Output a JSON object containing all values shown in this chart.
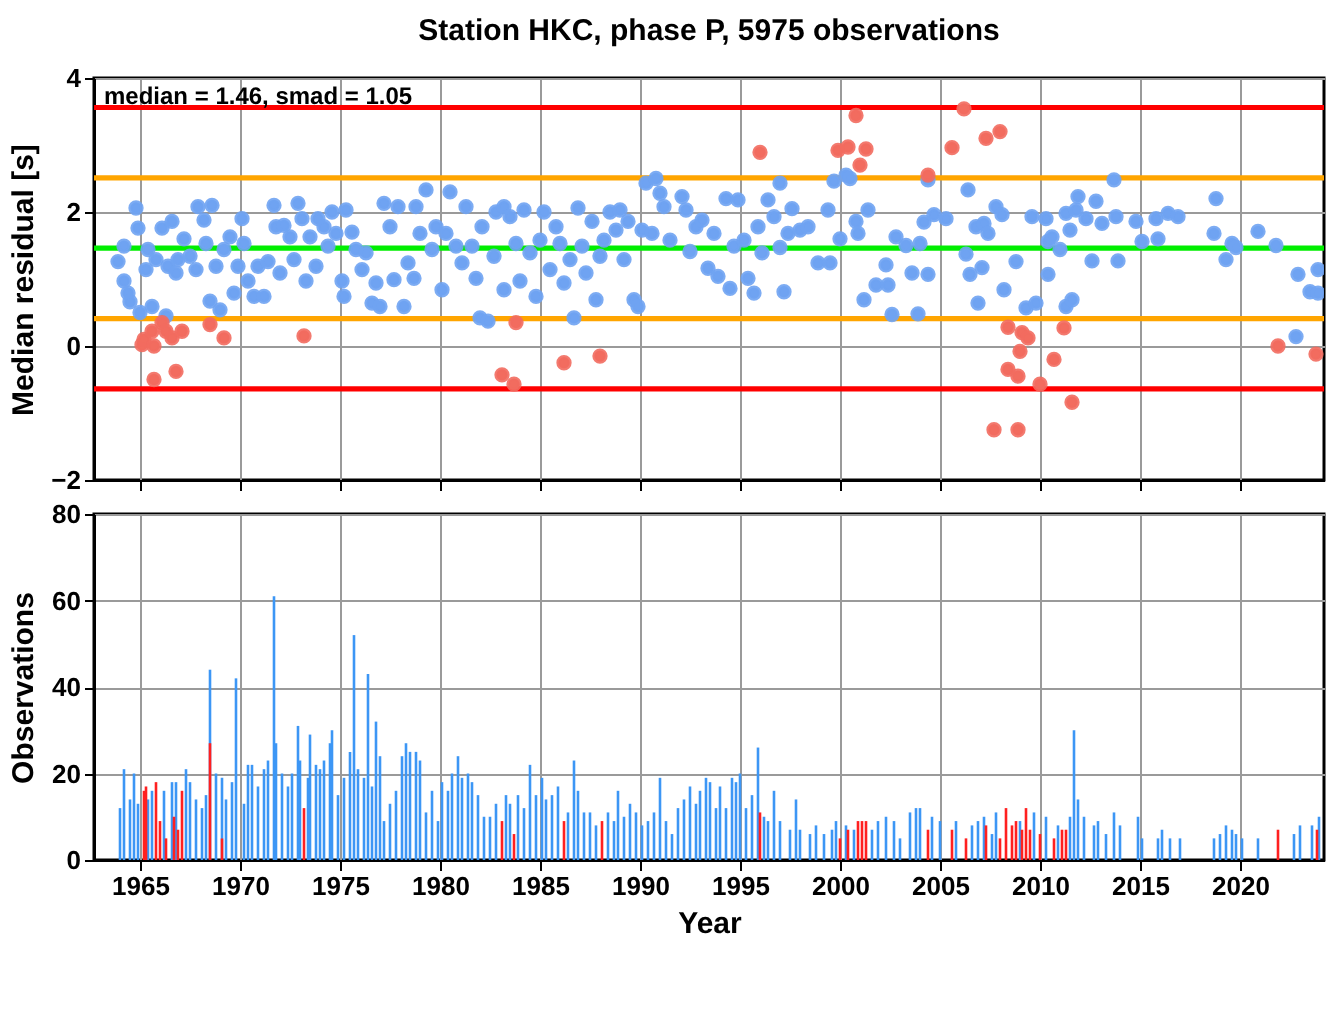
{
  "chart_data": [
    {
      "type": "scatter",
      "title": "Station HKC, phase P, 5975 observations",
      "ylabel": "Median residual [s]",
      "annotations": [
        "median = 1.46, smad = 1.05"
      ],
      "xlim": [
        1962.7,
        2024.2
      ],
      "xticks": [
        1965,
        1970,
        1975,
        1980,
        1985,
        1990,
        1995,
        2000,
        2005,
        2010,
        2015,
        2020
      ],
      "ylim": [
        -2,
        4
      ],
      "yticks": [
        -2,
        0,
        2,
        4
      ],
      "grid": true,
      "tick_labels": "y",
      "marker": "circle",
      "ref_lines": [
        {
          "axis": "y",
          "value": 3.56,
          "color": "#ff0000"
        },
        {
          "axis": "y",
          "value": 2.51,
          "color": "#ffa500"
        },
        {
          "axis": "y",
          "value": 1.46,
          "color": "#00ee00"
        },
        {
          "axis": "y",
          "value": 0.41,
          "color": "#ffa500"
        },
        {
          "axis": "y",
          "value": -0.64,
          "color": "#ff0000"
        }
      ],
      "series": [
        {
          "color": "#6fa3f2",
          "x": [
            1963.9,
            1964.2,
            1964.2,
            1964.4,
            1964.5,
            1964.8,
            1964.9,
            1965.0,
            1965.3,
            1965.4,
            1965.6,
            1965.8,
            1966.1,
            1966.3,
            1966.4,
            1966.6,
            1966.8,
            1966.9,
            1967.2,
            1967.5,
            1967.8,
            1967.9,
            1968.2,
            1968.3,
            1968.5,
            1968.6,
            1968.8,
            1969.0,
            1969.2,
            1969.5,
            1969.7,
            1969.9,
            1970.1,
            1970.2,
            1970.4,
            1970.7,
            1970.9,
            1971.2,
            1971.4,
            1971.7,
            1971.8,
            1972.0,
            1972.2,
            1972.5,
            1972.7,
            1972.9,
            1973.1,
            1973.3,
            1973.5,
            1973.8,
            1973.9,
            1974.2,
            1974.4,
            1974.6,
            1974.8,
            1975.1,
            1975.2,
            1975.3,
            1975.6,
            1975.8,
            1976.1,
            1976.3,
            1976.6,
            1976.8,
            1977.0,
            1977.2,
            1977.5,
            1977.7,
            1977.9,
            1978.2,
            1978.4,
            1978.7,
            1978.8,
            1979.0,
            1979.3,
            1979.6,
            1979.8,
            1980.1,
            1980.3,
            1980.5,
            1980.8,
            1981.1,
            1981.3,
            1981.6,
            1981.8,
            1982.0,
            1982.1,
            1982.4,
            1982.7,
            1982.8,
            1983.2,
            1983.2,
            1983.5,
            1983.8,
            1984.0,
            1984.2,
            1984.5,
            1984.8,
            1985.0,
            1985.2,
            1985.5,
            1985.8,
            1986.0,
            1986.2,
            1986.5,
            1986.7,
            1986.9,
            1987.1,
            1987.3,
            1987.6,
            1987.8,
            1988.0,
            1988.2,
            1988.5,
            1988.8,
            1989.0,
            1989.2,
            1989.4,
            1989.7,
            1989.9,
            1990.1,
            1990.3,
            1990.6,
            1990.8,
            1991.0,
            1991.2,
            1991.5,
            1992.1,
            1992.3,
            1992.5,
            1992.8,
            1993.1,
            1993.4,
            1993.7,
            1993.9,
            1994.3,
            1994.5,
            1994.7,
            1994.9,
            1995.2,
            1995.4,
            1995.7,
            1995.9,
            1996.1,
            1996.4,
            1996.7,
            1997.0,
            1997.0,
            1997.2,
            1997.4,
            1997.6,
            1998.0,
            1998.4,
            1998.9,
            1999.4,
            1999.5,
            1999.7,
            2000.0,
            2000.3,
            2000.5,
            2000.8,
            2000.9,
            2001.2,
            2001.4,
            2001.8,
            2002.3,
            2002.4,
            2002.6,
            2002.8,
            2003.3,
            2003.6,
            2003.9,
            2004.0,
            2004.2,
            2004.4,
            2004.4,
            2004.7,
            2005.3,
            2006.3,
            2006.4,
            2006.5,
            2006.8,
            2006.9,
            2007.1,
            2007.2,
            2007.4,
            2007.8,
            2008.1,
            2008.2,
            2008.8,
            2009.3,
            2009.6,
            2009.8,
            2010.3,
            2010.4,
            2010.4,
            2010.6,
            2011.0,
            2011.3,
            2011.3,
            2011.5,
            2011.6,
            2011.8,
            2011.9,
            2012.3,
            2012.6,
            2012.8,
            2013.1,
            2013.7,
            2013.8,
            2013.9,
            2014.8,
            2015.1,
            2015.8,
            2015.9,
            2016.4,
            2016.9,
            2018.7,
            2018.8,
            2019.3,
            2019.6,
            2019.8,
            2020.9,
            2021.8,
            2022.8,
            2022.9,
            2023.5,
            2023.9,
            2023.9
          ],
          "values": [
            1.26,
            1.49,
            0.97,
            0.79,
            0.66,
            2.06,
            1.76,
            0.5,
            1.14,
            1.44,
            0.59,
            1.29,
            1.76,
            0.45,
            1.19,
            1.86,
            1.09,
            1.29,
            1.6,
            1.34,
            1.14,
            2.08,
            1.88,
            1.53,
            0.67,
            2.1,
            1.19,
            0.54,
            1.44,
            1.63,
            0.79,
            1.19,
            1.9,
            1.53,
            0.97,
            0.74,
            1.19,
            0.74,
            1.26,
            2.1,
            1.78,
            1.09,
            1.8,
            1.63,
            1.29,
            2.13,
            1.9,
            0.97,
            1.63,
            1.19,
            1.9,
            1.78,
            1.49,
            2.0,
            1.68,
            0.97,
            0.74,
            2.03,
            1.7,
            1.44,
            1.14,
            1.39,
            0.64,
            0.94,
            0.59,
            2.13,
            1.78,
            0.99,
            2.08,
            0.59,
            1.24,
            1.01,
            2.08,
            1.68,
            2.33,
            1.44,
            1.78,
            0.84,
            1.68,
            2.3,
            1.49,
            1.24,
            2.08,
            1.49,
            1.01,
            0.42,
            1.78,
            0.37,
            1.34,
            2.0,
            0.84,
            2.08,
            1.93,
            1.53,
            0.97,
            2.03,
            1.39,
            0.74,
            1.58,
            2.0,
            1.14,
            1.78,
            1.53,
            0.94,
            1.29,
            0.42,
            2.06,
            1.49,
            1.09,
            1.86,
            0.69,
            1.34,
            1.58,
            2.0,
            1.73,
            2.03,
            1.29,
            1.86,
            0.69,
            0.59,
            1.73,
            2.43,
            1.68,
            2.5,
            2.28,
            2.08,
            1.58,
            2.23,
            2.03,
            1.41,
            1.78,
            1.88,
            1.16,
            1.68,
            1.04,
            2.2,
            0.86,
            1.49,
            2.18,
            1.58,
            1.01,
            0.79,
            1.78,
            1.39,
            2.18,
            1.93,
            1.47,
            2.43,
            0.81,
            1.68,
            2.05,
            1.73,
            1.78,
            1.24,
            2.03,
            1.24,
            2.46,
            1.6,
            2.55,
            2.5,
            1.86,
            1.68,
            0.69,
            2.03,
            0.91,
            1.21,
            0.91,
            0.47,
            1.63,
            1.5,
            1.09,
            0.48,
            1.53,
            1.85,
            2.48,
            1.07,
            1.96,
            1.9,
            1.37,
            2.33,
            1.07,
            1.78,
            0.64,
            1.17,
            1.83,
            1.68,
            2.08,
            1.96,
            0.84,
            1.26,
            0.57,
            1.93,
            0.64,
            1.9,
            1.56,
            1.07,
            1.63,
            1.44,
            1.98,
            0.59,
            1.73,
            0.69,
            2.03,
            2.23,
            1.9,
            1.27,
            2.16,
            1.83,
            2.48,
            1.93,
            1.27,
            1.86,
            1.56,
            1.9,
            1.6,
            1.98,
            1.93,
            1.68,
            2.2,
            1.29,
            1.53,
            1.47,
            1.71,
            1.5,
            0.14,
            1.07,
            0.81,
            0.79,
            1.14
          ]
        },
        {
          "color": "#f26c5f",
          "x": [
            1965.1,
            1965.2,
            1965.6,
            1965.7,
            1965.7,
            1966.1,
            1966.3,
            1966.6,
            1966.8,
            1967.1,
            1968.5,
            1969.2,
            1973.2,
            1983.1,
            1983.7,
            1983.8,
            1986.2,
            1988.0,
            1996.0,
            1999.9,
            2000.4,
            2000.8,
            2001.0,
            2001.3,
            2004.4,
            2005.6,
            2006.2,
            2007.3,
            2007.7,
            2008.0,
            2008.4,
            2008.4,
            2008.9,
            2008.9,
            2009.0,
            2009.1,
            2009.4,
            2010.0,
            2010.7,
            2011.2,
            2011.6,
            2021.9,
            2023.8
          ],
          "values": [
            0.02,
            0.1,
            0.22,
            0.0,
            -0.5,
            0.35,
            0.22,
            0.12,
            -0.38,
            0.22,
            0.32,
            0.12,
            0.15,
            -0.43,
            -0.57,
            0.35,
            -0.25,
            -0.15,
            2.89,
            2.92,
            2.97,
            3.44,
            2.7,
            2.94,
            2.55,
            2.96,
            3.54,
            3.1,
            -1.25,
            3.2,
            0.28,
            -0.35,
            -0.45,
            -1.25,
            -0.08,
            0.2,
            0.12,
            -0.57,
            -0.2,
            0.27,
            -0.84,
            0.0,
            -0.12
          ]
        }
      ]
    },
    {
      "type": "bar",
      "xlabel": "Year",
      "ylabel": "Observations",
      "xlim": [
        1962.7,
        2024.2
      ],
      "xticks": [
        1965,
        1970,
        1975,
        1980,
        1985,
        1990,
        1995,
        2000,
        2005,
        2010,
        2015,
        2020
      ],
      "ylim": [
        0,
        80
      ],
      "yticks": [
        0,
        20,
        40,
        60,
        80
      ],
      "grid": true,
      "series": [
        {
          "color": "#3c96f5",
          "x": [
            1964.0,
            1964.2,
            1964.5,
            1964.7,
            1964.9,
            1965.4,
            1965.6,
            1966.2,
            1966.6,
            1966.8,
            1967.3,
            1967.5,
            1967.8,
            1968.1,
            1968.3,
            1968.5,
            1968.8,
            1969.1,
            1969.3,
            1969.6,
            1969.8,
            1970.2,
            1970.4,
            1970.6,
            1970.9,
            1971.2,
            1971.4,
            1971.7,
            1971.8,
            1972.1,
            1972.4,
            1972.6,
            1972.9,
            1973.0,
            1973.4,
            1973.5,
            1973.8,
            1974.0,
            1974.2,
            1974.5,
            1974.6,
            1974.9,
            1975.2,
            1975.5,
            1975.7,
            1975.9,
            1976.2,
            1976.4,
            1976.6,
            1976.8,
            1977.0,
            1977.2,
            1977.5,
            1977.8,
            1978.1,
            1978.3,
            1978.5,
            1978.8,
            1979.0,
            1979.3,
            1979.6,
            1979.9,
            1980.1,
            1980.4,
            1980.6,
            1980.9,
            1981.1,
            1981.4,
            1981.6,
            1981.9,
            1982.2,
            1982.5,
            1982.8,
            1983.3,
            1983.5,
            1983.9,
            1984.2,
            1984.5,
            1984.8,
            1985.1,
            1985.3,
            1985.6,
            1985.9,
            1986.4,
            1986.7,
            1986.9,
            1987.2,
            1987.5,
            1987.8,
            1988.4,
            1988.7,
            1988.9,
            1989.2,
            1989.5,
            1989.8,
            1990.1,
            1990.4,
            1990.7,
            1991.0,
            1991.3,
            1991.6,
            1991.9,
            1992.2,
            1992.5,
            1992.8,
            1993.0,
            1993.3,
            1993.5,
            1993.8,
            1994.0,
            1994.3,
            1994.6,
            1994.8,
            1995.0,
            1995.3,
            1995.6,
            1995.9,
            1996.2,
            1996.4,
            1996.7,
            1997.0,
            1997.5,
            1997.8,
            1998.0,
            1998.5,
            1998.8,
            1999.2,
            1999.6,
            1999.8,
            2000.3,
            2000.7,
            2001.6,
            2001.9,
            2002.3,
            2002.7,
            2003.0,
            2003.5,
            2003.8,
            2004.0,
            2004.6,
            2005.0,
            2005.8,
            2006.6,
            2006.9,
            2007.2,
            2007.6,
            2007.8,
            2009.0,
            2009.7,
            2010.3,
            2010.9,
            2011.5,
            2011.7,
            2011.9,
            2012.2,
            2012.7,
            2012.9,
            2013.3,
            2013.7,
            2014.0,
            2014.9,
            2015.1,
            2015.9,
            2016.1,
            2016.5,
            2017.0,
            2018.7,
            2019.0,
            2019.3,
            2019.6,
            2019.8,
            2020.1,
            2020.9,
            2022.7,
            2023.0,
            2023.6,
            2023.95
          ],
          "values": [
            12,
            21,
            14,
            20,
            13,
            14,
            16,
            16,
            18,
            18,
            21,
            18,
            14,
            12,
            15,
            44,
            20,
            19,
            14,
            18,
            42,
            13,
            22,
            22,
            17,
            21,
            23,
            61,
            27,
            20,
            17,
            20,
            31,
            23,
            19,
            29,
            22,
            21,
            23,
            27,
            30,
            15,
            19,
            25,
            52,
            21,
            19,
            43,
            17,
            32,
            24,
            9,
            13,
            16,
            24,
            27,
            25,
            25,
            23,
            11,
            16,
            9,
            18,
            16,
            20,
            24,
            19,
            20,
            18,
            15,
            10,
            10,
            13,
            15,
            13,
            15,
            12,
            22,
            15,
            19,
            14,
            15,
            17,
            11,
            23,
            16,
            11,
            11,
            8,
            11,
            9,
            16,
            10,
            13,
            11,
            8,
            9,
            11,
            19,
            9,
            6,
            12,
            14,
            17,
            13,
            16,
            19,
            18,
            12,
            17,
            12,
            19,
            18,
            20,
            12,
            15,
            26,
            10,
            9,
            16,
            9,
            7,
            14,
            7,
            6,
            8,
            6,
            7,
            9,
            8,
            7,
            7,
            9,
            10,
            9,
            5,
            11,
            12,
            12,
            10,
            9,
            9,
            8,
            9,
            10,
            6,
            11,
            9,
            11,
            10,
            8,
            10,
            30,
            14,
            10,
            8,
            9,
            6,
            11,
            8,
            10,
            5,
            5,
            7,
            5,
            5,
            5,
            6,
            8,
            7,
            6,
            5,
            5,
            6,
            8,
            8,
            10
          ]
        },
        {
          "color": "#ff2020",
          "x": [
            1965.2,
            1965.3,
            1965.8,
            1966.0,
            1966.3,
            1966.7,
            1966.9,
            1967.1,
            1968.5,
            1969.1,
            1973.2,
            1983.1,
            1983.7,
            1986.2,
            1988.1,
            1996.0,
            2000.0,
            2000.4,
            2000.9,
            2001.1,
            2001.3,
            2004.4,
            2005.6,
            2006.3,
            2007.3,
            2008.0,
            2008.3,
            2008.6,
            2008.8,
            2009.1,
            2009.3,
            2009.5,
            2010.0,
            2010.7,
            2011.1,
            2011.3,
            2021.9,
            2023.85
          ],
          "values": [
            16,
            17,
            18,
            9,
            5,
            10,
            7,
            16,
            27,
            5,
            12,
            9,
            6,
            9,
            9,
            11,
            5,
            7,
            9,
            9,
            9,
            7,
            7,
            5,
            8,
            5,
            12,
            8,
            9,
            7,
            12,
            7,
            6,
            5,
            7,
            7,
            7,
            7
          ]
        }
      ]
    }
  ]
}
